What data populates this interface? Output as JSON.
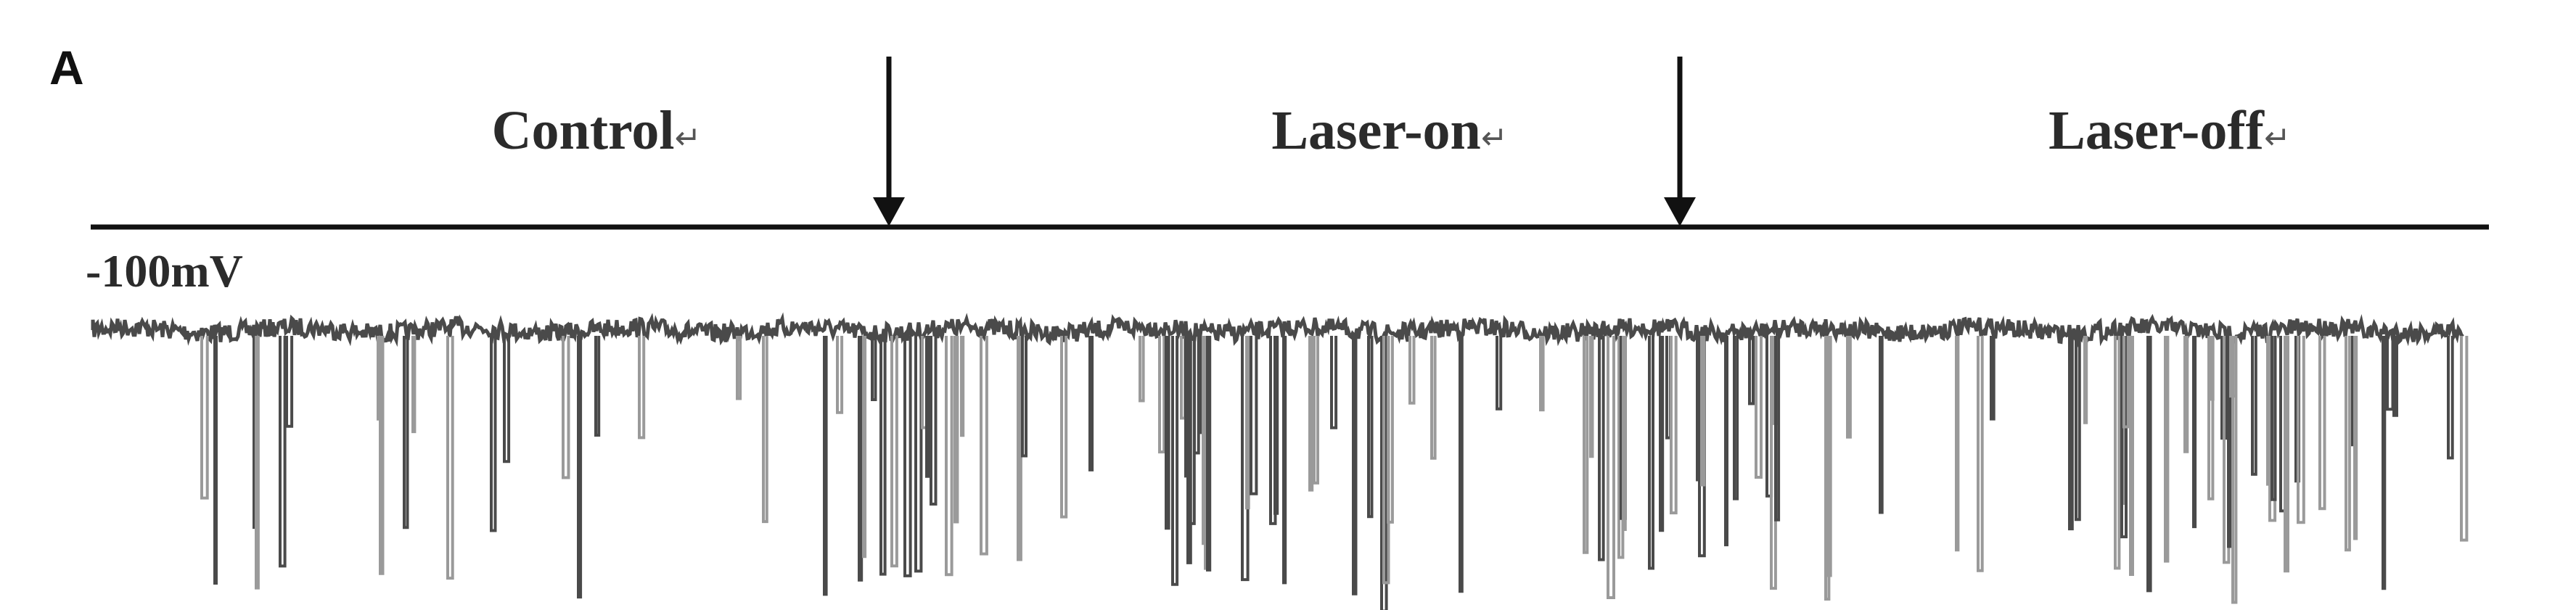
{
  "panel_letter": "A",
  "chart_data": {
    "type": "line",
    "title": "",
    "xlabel": "",
    "ylabel": "",
    "phases": [
      {
        "label": "Control",
        "mark": "↵"
      },
      {
        "label": "Laser-on",
        "mark": "↵"
      },
      {
        "label": "Laser-off",
        "mark": "↵"
      }
    ],
    "event_markers": [
      {
        "after_phase": "Control"
      },
      {
        "after_phase": "Laser-on"
      }
    ],
    "holding_potential_label": "-100mV",
    "trace_color": "#4a4a4a",
    "secondary_trace_color": "#9a9a9a",
    "grid": false,
    "legend": "none"
  }
}
